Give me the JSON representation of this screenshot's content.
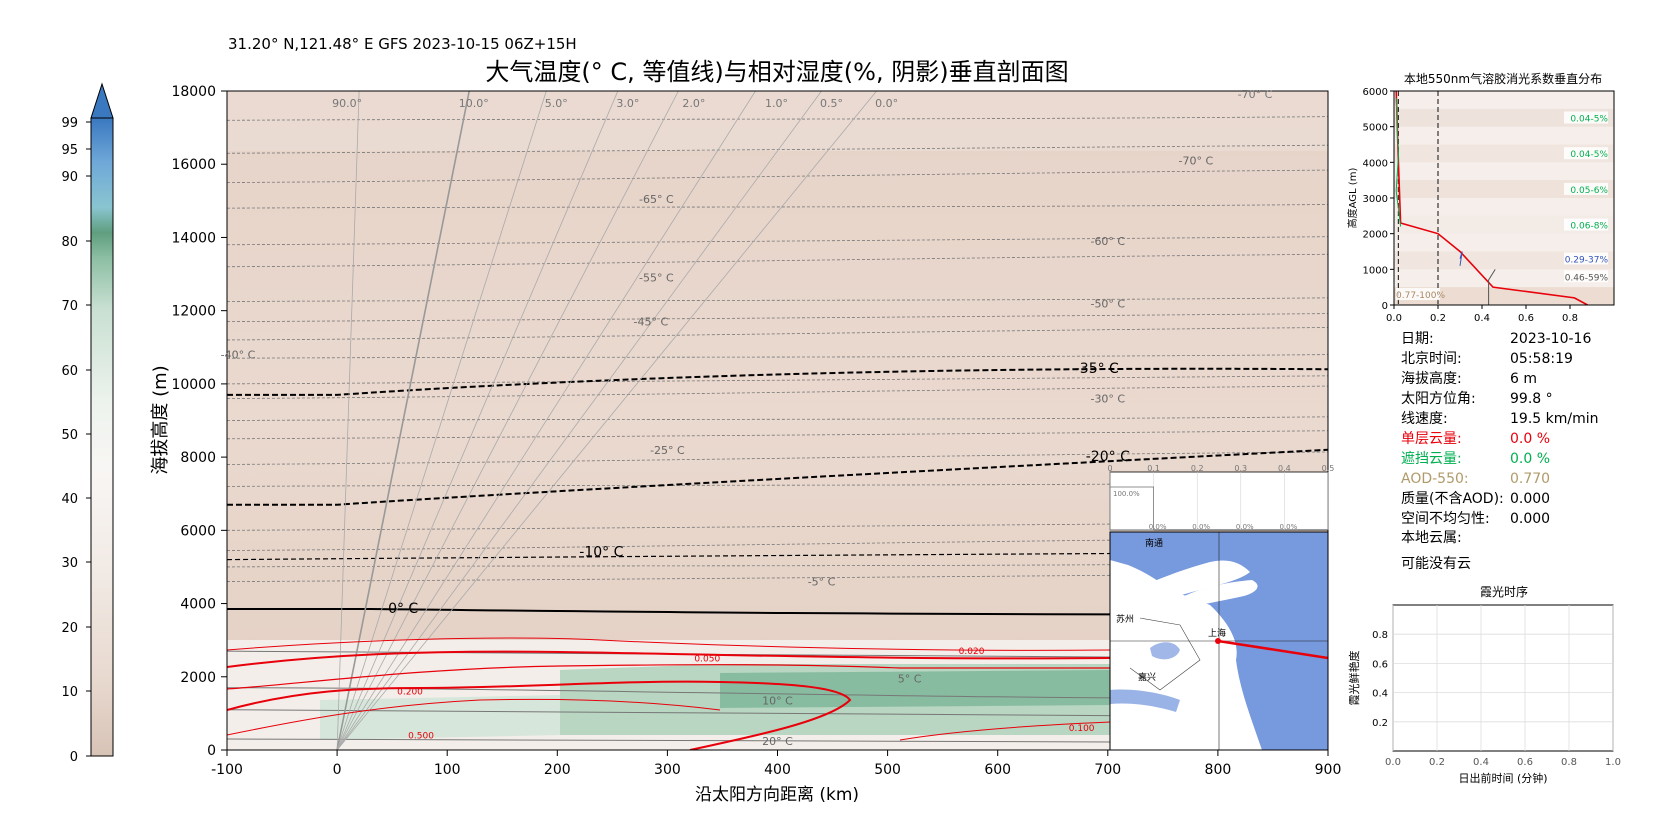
{
  "header": {
    "location_line": "31.20° N,121.48° E GFS 2023-10-15 06Z+15H",
    "title": "大气温度(° C, 等值线)与相对湿度(%, 阴影)垂直剖面图"
  },
  "colorbar": {
    "ticks": [
      "0",
      "10",
      "20",
      "30",
      "40",
      "50",
      "60",
      "70",
      "80",
      "90",
      "95",
      "99"
    ]
  },
  "chart_data": [
    {
      "type": "heatmap",
      "title": "大气温度(° C, 等值线)与相对湿度(%, 阴影)垂直剖面图",
      "xlabel": "沿太阳方向距离 (km)",
      "ylabel": "海拔高度 (m)",
      "xlim": [
        -100,
        900
      ],
      "ylim": [
        0,
        18000
      ],
      "x_ticks": [
        "-100",
        "0",
        "100",
        "200",
        "300",
        "400",
        "500",
        "600",
        "700",
        "800",
        "900"
      ],
      "y_ticks": [
        "0",
        "2000",
        "4000",
        "6000",
        "8000",
        "10000",
        "12000",
        "14000",
        "16000",
        "18000"
      ],
      "temperature_contours": [
        {
          "label": "-70° C",
          "x": 780,
          "y": 16100
        },
        {
          "label": "-65° C",
          "x": 290,
          "y": 15050
        },
        {
          "label": "-60° C",
          "x": 700,
          "y": 13900
        },
        {
          "label": "-55° C",
          "x": 290,
          "y": 12900
        },
        {
          "label": "-50° C",
          "x": 700,
          "y": 12200
        },
        {
          "label": "-45° C",
          "x": 285,
          "y": 11700
        },
        {
          "label": "-40° C",
          "x": -90,
          "y": 10800
        },
        {
          "label": "-35° C",
          "x": 690,
          "y": 10400
        },
        {
          "label": "-30° C",
          "x": 700,
          "y": 9600
        },
        {
          "label": "-25° C",
          "x": 300,
          "y": 8200
        },
        {
          "label": "-20° C",
          "x": 700,
          "y": 8000
        },
        {
          "label": "-10° C",
          "x": 240,
          "y": 5400
        },
        {
          "label": "-5° C",
          "x": 440,
          "y": 4600
        },
        {
          "label": "0° C",
          "x": 60,
          "y": 3850
        },
        {
          "label": "5° C",
          "x": 520,
          "y": 1950
        },
        {
          "label": "10° C",
          "x": 400,
          "y": 1350
        },
        {
          "label": "20° C",
          "x": 400,
          "y": 250
        }
      ],
      "solar_angle_labels": [
        "90.0°",
        "10.0°",
        "5.0°",
        "3.0°",
        "2.0°",
        "1.0°",
        "0.5°",
        "0.0°"
      ],
      "red_contour_labels": [
        "0.500",
        "0.200",
        "0.050",
        "0.020",
        "0.100"
      ],
      "top_corner_label": "-70° C"
    },
    {
      "type": "line",
      "title": "本地550nm气溶胶消光系数垂直分布",
      "ylabel": "高度AGL (m)",
      "xlim": [
        0,
        1.0
      ],
      "ylim": [
        0,
        6000
      ],
      "x_ticks": [
        "0.0",
        "0.2",
        "0.4",
        "0.6",
        "0.8"
      ],
      "y_ticks": [
        "0",
        "1000",
        "2000",
        "3000",
        "4000",
        "5000",
        "6000"
      ],
      "layer_labels": [
        {
          "label": "0.04-5%",
          "y": 5200
        },
        {
          "label": "0.04-5%",
          "y": 4200
        },
        {
          "label": "0.05-6%",
          "y": 3200
        },
        {
          "label": "0.06-8%",
          "y": 2200
        },
        {
          "label": "0.29-37%",
          "y": 1250
        },
        {
          "label": "0.46-59%",
          "y": 750
        },
        {
          "label": "0.77-100%",
          "y": 250
        }
      ],
      "series": [
        {
          "values": [
            [
              0.88,
              0
            ],
            [
              0.82,
              200
            ],
            [
              0.45,
              500
            ],
            [
              0.3,
              1500
            ],
            [
              0.2,
              2000
            ],
            [
              0.03,
              2300
            ],
            [
              0.02,
              4000
            ],
            [
              0.01,
              6000
            ]
          ]
        }
      ],
      "reference_lines_x": [
        0.02,
        0.2
      ]
    },
    {
      "type": "bar",
      "xlim": [
        0,
        0.5
      ],
      "x_ticks": [
        "0",
        "0.1",
        "0.2",
        "0.3",
        "0.4",
        "0.5"
      ],
      "value_labels": [
        "100.0%",
        "0.0%",
        "0.0%",
        "0.0%",
        "0.0%"
      ]
    },
    {
      "type": "line",
      "title": "霞光时序",
      "xlabel": "日出前时间 (分钟)",
      "ylabel": "霞光鲜艳度",
      "xlim": [
        0,
        1.0
      ],
      "ylim": [
        0,
        1.0
      ],
      "x_ticks": [
        "0.0",
        "0.2",
        "0.4",
        "0.6",
        "0.8",
        "1.0"
      ],
      "y_ticks": [
        "0.2",
        "0.4",
        "0.6",
        "0.8"
      ],
      "series": []
    }
  ],
  "map": {
    "labels": [
      "南通",
      "苏州",
      "上海",
      "嘉兴"
    ]
  },
  "info": {
    "rows": [
      {
        "label": "日期:",
        "value": "2023-10-16",
        "color": "#000000"
      },
      {
        "label": "北京时间:",
        "value": "05:58:19",
        "color": "#000000"
      },
      {
        "label": "海拔高度:",
        "value": "6 m",
        "color": "#000000"
      },
      {
        "label": "太阳方位角:",
        "value": "99.8 °",
        "color": "#000000"
      },
      {
        "label": "线速度:",
        "value": "19.5 km/min",
        "color": "#000000"
      },
      {
        "label": "单层云量:",
        "value": "0.0 %",
        "color": "#e8000b"
      },
      {
        "label": "遮挡云量:",
        "value": "0.0 %",
        "color": "#00b050"
      },
      {
        "label": "AOD-550:",
        "value": "0.770",
        "color": "#b09a6a"
      },
      {
        "label": "质量(不含AOD):",
        "value": "0.000",
        "color": "#000000"
      },
      {
        "label": "空间不均匀性:",
        "value": "0.000",
        "color": "#000000"
      }
    ],
    "cloud_label": "本地云属:",
    "cloud_value": "可能没有云"
  },
  "colors": {
    "red": "#e8000b",
    "green": "#00b050",
    "tan": "#b09a6a",
    "water": "#7799dd",
    "shade_dry": "#e9d6cb",
    "shade_moist": "#7fb79a"
  }
}
